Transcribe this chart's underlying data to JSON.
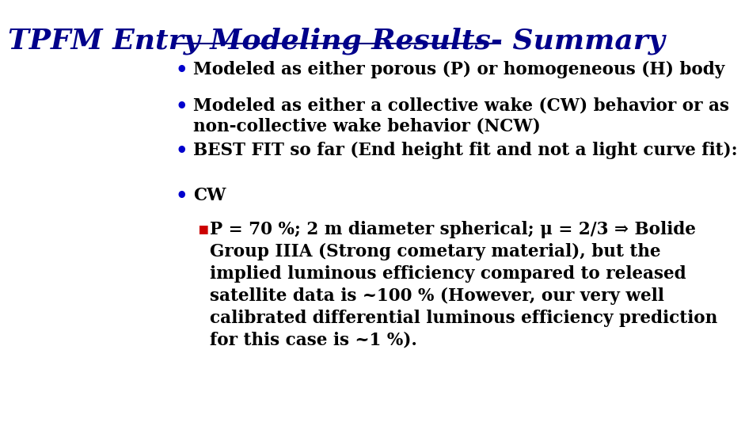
{
  "title": "TPFM Entry Modeling Results- Summary",
  "title_color": "#00008B",
  "title_fontsize": 26,
  "background_color": "#FFFFFF",
  "bullet_color": "#0000CD",
  "bullet_fontsize": 15.5,
  "sub_bullet_color": "#CC0000",
  "bullets": [
    "Modeled as either porous (P) or homogeneous (H) body",
    "Modeled as either a collective wake (CW) behavior or as\nnon-collective wake behavior (NCW)",
    "BEST FIT so far (End height fit and not a light curve fit):",
    "CW"
  ],
  "sub_bullet": "P = 70 %; 2 m diameter spherical; μ = 2/3 ⇒ Bolide\nGroup IIIA (Strong cometary material), but the\nimplied luminous efficiency compared to released\nsatellite data is ~100 % (However, our very well\ncalibrated differential luminous efficiency prediction\nfor this case is ~1 %).",
  "title_line_color": "#000080",
  "title_line_lw": 1.5
}
